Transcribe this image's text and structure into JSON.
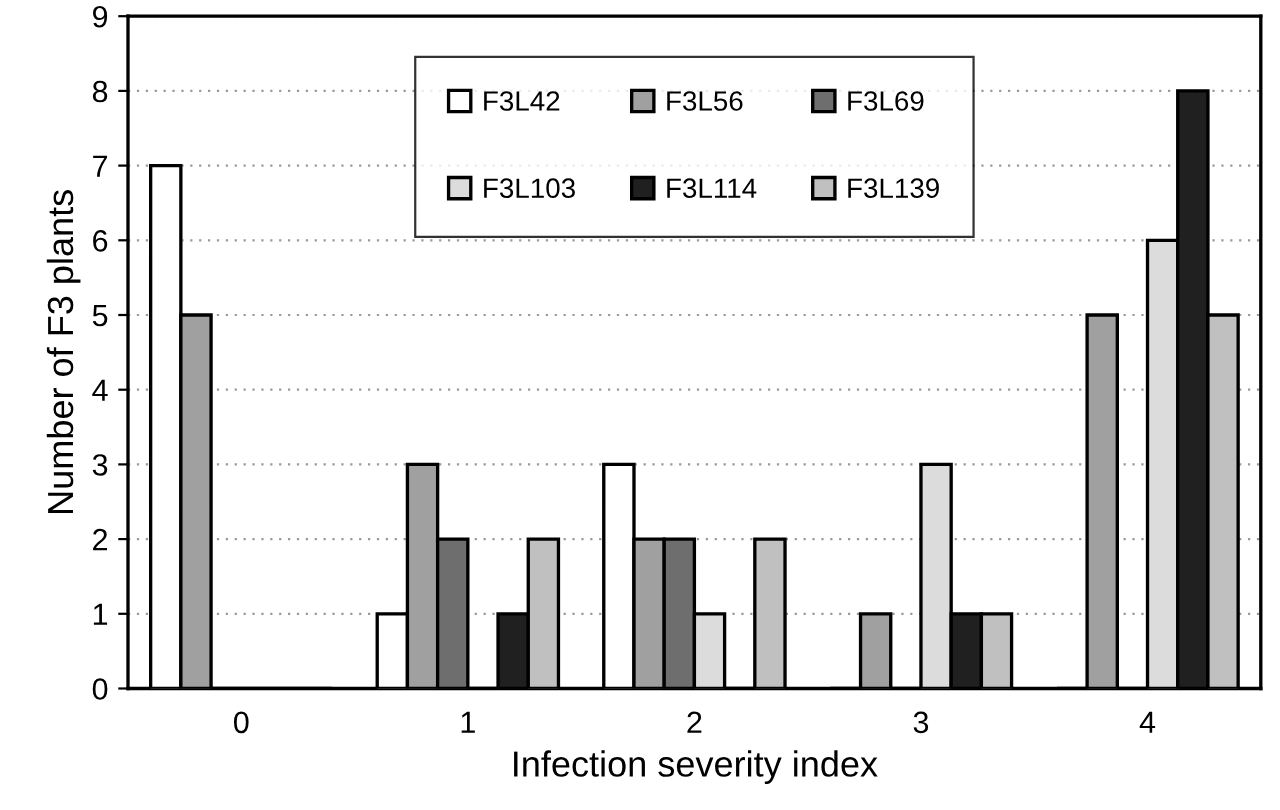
{
  "chart_data": {
    "type": "bar",
    "xlabel": "Infection severity index",
    "ylabel": "Number of F3 plants",
    "categories": [
      "0",
      "1",
      "2",
      "3",
      "4"
    ],
    "series": [
      {
        "name": "F3L42",
        "color": "#ffffff",
        "values": [
          7,
          1,
          3,
          0,
          0
        ]
      },
      {
        "name": "F3L56",
        "color": "#a0a0a0",
        "values": [
          5,
          3,
          2,
          1,
          5
        ]
      },
      {
        "name": "F3L69",
        "color": "#6e6e6e",
        "values": [
          0,
          2,
          2,
          0,
          0
        ]
      },
      {
        "name": "F3L103",
        "color": "#dcdcdc",
        "values": [
          0,
          0,
          1,
          3,
          6
        ]
      },
      {
        "name": "F3L114",
        "color": "#202020",
        "values": [
          0,
          1,
          0,
          1,
          8
        ]
      },
      {
        "name": "F3L139",
        "color": "#c0c0c0",
        "values": [
          0,
          2,
          2,
          1,
          5
        ]
      }
    ],
    "ylim": [
      0,
      9
    ],
    "yticks": [
      0,
      1,
      2,
      3,
      4,
      5,
      6,
      7,
      8,
      9
    ],
    "grid": "y",
    "legend": "top"
  }
}
